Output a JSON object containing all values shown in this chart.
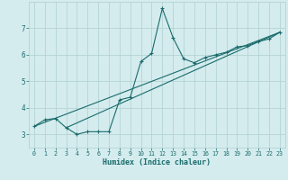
{
  "xlabel": "Humidex (Indice chaleur)",
  "bg_color": "#d4ecee",
  "grid_color": "#b0d0d0",
  "line_color": "#1a6b6b",
  "xlim": [
    -0.5,
    23.5
  ],
  "ylim": [
    2.5,
    8.0
  ],
  "xticks": [
    0,
    1,
    2,
    3,
    4,
    5,
    6,
    7,
    8,
    9,
    10,
    11,
    12,
    13,
    14,
    15,
    16,
    17,
    18,
    19,
    20,
    21,
    22,
    23
  ],
  "yticks": [
    3,
    4,
    5,
    6,
    7
  ],
  "series1_x": [
    0,
    1,
    2,
    3,
    4,
    5,
    6,
    7,
    8,
    9,
    10,
    11,
    12,
    13,
    14,
    15,
    16,
    17,
    18,
    19,
    20,
    21,
    22,
    23
  ],
  "series1_y": [
    3.3,
    3.55,
    3.6,
    3.25,
    3.0,
    3.1,
    3.1,
    3.1,
    4.3,
    4.4,
    5.75,
    6.05,
    7.75,
    6.65,
    5.85,
    5.7,
    5.9,
    6.0,
    6.1,
    6.3,
    6.35,
    6.5,
    6.6,
    6.85
  ],
  "series2_x": [
    0,
    23
  ],
  "series2_y": [
    3.3,
    6.85
  ],
  "series3_x": [
    3,
    23
  ],
  "series3_y": [
    3.25,
    6.85
  ]
}
